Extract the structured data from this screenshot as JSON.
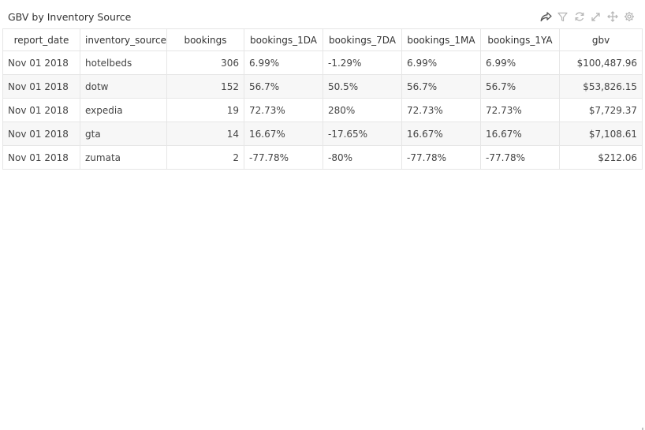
{
  "panel": {
    "title": "GBV by Inventory Source",
    "toolbar": [
      {
        "icon": "share-icon"
      },
      {
        "icon": "filter-icon"
      },
      {
        "icon": "refresh-icon"
      },
      {
        "icon": "expand-icon"
      },
      {
        "icon": "move-icon"
      },
      {
        "icon": "settings-icon"
      }
    ],
    "toolbar_color": "#b5b5b5",
    "share_color": "#555555"
  },
  "table": {
    "columns": [
      "report_date",
      "inventory_source",
      "bookings",
      "bookings_1DA",
      "bookings_7DA",
      "bookings_1MA",
      "bookings_1YA",
      "gbv"
    ],
    "rows": [
      [
        "Nov 01 2018",
        "hotelbeds",
        "306",
        "6.99%",
        "-1.29%",
        "6.99%",
        "6.99%",
        "$100,487.96"
      ],
      [
        "Nov 01 2018",
        "dotw",
        "152",
        "56.7%",
        "50.5%",
        "56.7%",
        "56.7%",
        "$53,826.15"
      ],
      [
        "Nov 01 2018",
        "expedia",
        "19",
        "72.73%",
        "280%",
        "72.73%",
        "72.73%",
        "$7,729.37"
      ],
      [
        "Nov 01 2018",
        "gta",
        "14",
        "16.67%",
        "-17.65%",
        "16.67%",
        "16.67%",
        "$7,108.61"
      ],
      [
        "Nov 01 2018",
        "zumata",
        "2",
        "-77.78%",
        "-80%",
        "-77.78%",
        "-77.78%",
        "$212.06"
      ]
    ]
  }
}
